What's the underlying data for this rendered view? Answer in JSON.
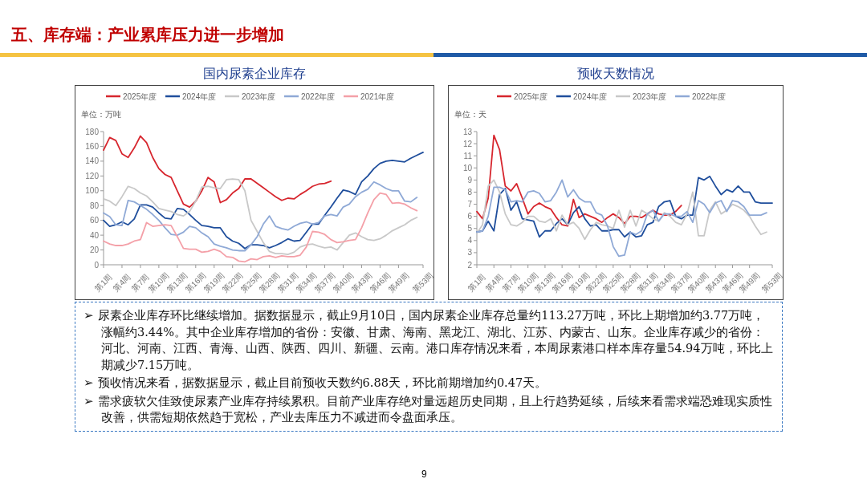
{
  "chart_data": [
    {
      "type": "line",
      "title": "国内尿素企业库存",
      "ylabel": "单位：万吨",
      "legend": "top",
      "categories": [
        "第1周",
        null,
        null,
        "第4周",
        null,
        null,
        "第7周",
        null,
        null,
        "第10周",
        null,
        null,
        "第13周",
        null,
        null,
        "第16周",
        null,
        null,
        "第19周",
        null,
        null,
        "第22周",
        null,
        null,
        "第25周",
        null,
        null,
        "第28周",
        null,
        null,
        "第31周",
        null,
        null,
        "第34周",
        null,
        null,
        "第37周",
        null,
        null,
        "第40周",
        null,
        null,
        "第43周",
        null,
        null,
        "第46周",
        null,
        null,
        "第49周",
        null,
        null,
        null,
        "第53周"
      ],
      "ylim": [
        0,
        180
      ],
      "yticks": [
        0,
        20,
        40,
        60,
        80,
        100,
        120,
        140,
        160,
        180
      ],
      "series": [
        {
          "name": "2025年度",
          "color": "#d7262e",
          "values": [
            155,
            172,
            168,
            150,
            145,
            158,
            174,
            165,
            145,
            130,
            122,
            118,
            100,
            82,
            78,
            86,
            100,
            118,
            112,
            84,
            88,
            97,
            103,
            116,
            116,
            110,
            104,
            98,
            92,
            87,
            90,
            89,
            95,
            100,
            106,
            109,
            110,
            113,
            null,
            null,
            null,
            null,
            null,
            null,
            null,
            null,
            null,
            null,
            null,
            null,
            null,
            null,
            null
          ]
        },
        {
          "name": "2024年度",
          "color": "#1f4e9c",
          "values": [
            60,
            52,
            54,
            58,
            54,
            62,
            81,
            81,
            78,
            70,
            63,
            62,
            76,
            75,
            68,
            60,
            53,
            52,
            50,
            50,
            38,
            32,
            29,
            22,
            27,
            27,
            26,
            23,
            26,
            30,
            35,
            32,
            33,
            44,
            55,
            55,
            67,
            78,
            90,
            101,
            99,
            95,
            112,
            120,
            130,
            137,
            140,
            141,
            140,
            139,
            144,
            148,
            152
          ]
        },
        {
          "name": "2023年度",
          "color": "#c8c8c8",
          "values": [
            89,
            86,
            80,
            92,
            106,
            103,
            97,
            93,
            85,
            76,
            74,
            72,
            68,
            66,
            72,
            86,
            105,
            106,
            104,
            103,
            115,
            116,
            115,
            100,
            60,
            45,
            30,
            18,
            15,
            15,
            14,
            17,
            24,
            27,
            28,
            25,
            23,
            24,
            20,
            30,
            40,
            43,
            38,
            34,
            33,
            35,
            40,
            46,
            50,
            54,
            60,
            64,
            null
          ]
        },
        {
          "name": "2022年度",
          "color": "#8fa9d6",
          "values": [
            70,
            65,
            54,
            53,
            87,
            85,
            80,
            75,
            68,
            60,
            50,
            41,
            40,
            44,
            52,
            50,
            43,
            38,
            28,
            25,
            23,
            20,
            19,
            19,
            27,
            38,
            55,
            66,
            52,
            49,
            47,
            52,
            56,
            58,
            55,
            57,
            66,
            68,
            66,
            78,
            82,
            92,
            98,
            102,
            112,
            108,
            103,
            100,
            100,
            86,
            85,
            91,
            null
          ]
        },
        {
          "name": "2021年度",
          "color": "#f4a0a8",
          "values": [
            32,
            28,
            26,
            26,
            28,
            32,
            34,
            57,
            52,
            53,
            54,
            53,
            38,
            22,
            21,
            21,
            17,
            18,
            21,
            18,
            11,
            10,
            5,
            4,
            8,
            7,
            11,
            12,
            10,
            12,
            11,
            11,
            13,
            24,
            45,
            44,
            41,
            34,
            30,
            31,
            33,
            34,
            50,
            70,
            88,
            97,
            95,
            83,
            84,
            82,
            77,
            73,
            null
          ]
        }
      ]
    },
    {
      "type": "line",
      "title": "预收天数情况",
      "ylabel": "单位：天",
      "legend": "top",
      "categories": [
        "第1周",
        null,
        null,
        "第4周",
        null,
        null,
        "第7周",
        null,
        null,
        "第10周",
        null,
        null,
        "第13周",
        null,
        null,
        "第16周",
        null,
        null,
        "第19周",
        null,
        null,
        "第22周",
        null,
        null,
        "第25周",
        null,
        null,
        "第28周",
        null,
        null,
        "第31周",
        null,
        null,
        "第34周",
        null,
        null,
        "第37周",
        null,
        null,
        "第40周",
        null,
        null,
        "第43周",
        null,
        null,
        "第46周",
        null,
        null,
        "第49周",
        null,
        null,
        null,
        "第53周"
      ],
      "ylim": [
        2,
        13
      ],
      "yticks": [
        2,
        3,
        4,
        5,
        6,
        7,
        8,
        9,
        10,
        11,
        12,
        13
      ],
      "series": [
        {
          "name": "2025年度",
          "color": "#d7262e",
          "values": [
            6.4,
            5.8,
            7.5,
            12.7,
            11.5,
            8.5,
            8.1,
            8.7,
            7.5,
            6.2,
            6.8,
            7.1,
            6.8,
            6.6,
            5.9,
            5.3,
            5.2,
            7.4,
            5.9,
            6.2,
            6.0,
            5.8,
            5.5,
            5.9,
            6.2,
            5.9,
            5.4,
            6.0,
            6.0,
            5.9,
            6.2,
            6.5,
            6.2,
            6.1,
            6.1,
            6.4,
            6.9,
            null,
            null,
            null,
            null,
            null,
            null,
            null,
            null,
            null,
            null,
            null,
            null,
            null,
            null,
            null,
            null
          ]
        },
        {
          "name": "2024年度",
          "color": "#1f4e9c",
          "values": [
            4.7,
            4.8,
            5.6,
            4.8,
            7.8,
            8.3,
            6.5,
            7.2,
            5.8,
            5.7,
            5.6,
            4.3,
            4.8,
            4.8,
            5.4,
            5.8,
            5.3,
            6.3,
            6.8,
            5.8,
            5.2,
            5.3,
            4.8,
            4.8,
            4.9,
            4.9,
            4.3,
            4.7,
            4.3,
            4.4,
            5.3,
            5.5,
            6.8,
            7.2,
            7.3,
            6.0,
            5.8,
            6.1,
            6.1,
            9.2,
            9.0,
            9.3,
            8.5,
            7.8,
            8.2,
            8.0,
            8.5,
            8.0,
            8.0,
            7.2,
            7.1,
            7.1,
            7.1
          ]
        },
        {
          "name": "2023年度",
          "color": "#c8c8c8",
          "values": [
            4.6,
            5.3,
            8.5,
            9.0,
            8.0,
            6.2,
            5.3,
            5.2,
            5.5,
            6.0,
            6.0,
            5.6,
            5.5,
            5.8,
            4.8,
            6.1,
            5.3,
            5.5,
            5.0,
            4.1,
            4.9,
            5.5,
            5.3,
            5.2,
            5.0,
            6.5,
            5.1,
            6.5,
            5.2,
            6.5,
            6.2,
            5.8,
            5.6,
            6.3,
            6.0,
            5.5,
            5.3,
            6.2,
            8.0,
            4.4,
            4.4,
            6.5,
            7.2,
            6.2,
            6.5,
            7.0,
            6.8,
            6.5,
            6.0,
            5.2,
            4.5,
            4.7,
            null
          ]
        },
        {
          "name": "2022年度",
          "color": "#8fa9d6",
          "values": [
            4.7,
            4.8,
            6.0,
            8.4,
            8.4,
            8.2,
            7.2,
            7.3,
            7.2,
            8.0,
            8.1,
            7.9,
            7.2,
            7.3,
            8.0,
            9.0,
            7.6,
            8.2,
            7.5,
            7.2,
            7.2,
            6.3,
            6.1,
            5.2,
            3.5,
            2.7,
            2.8,
            4.7,
            4.5,
            4.8,
            6.2,
            6.5,
            5.6,
            6.2,
            6.2,
            6.0,
            6.0,
            6.4,
            5.5,
            7.3,
            7.0,
            6.3,
            7.1,
            7.3,
            6.4,
            7.3,
            7.2,
            6.8,
            6.1,
            6.1,
            6.1,
            6.3,
            null
          ]
        }
      ]
    },
    {
      "type": "other",
      "title": "五、库存端：产业累库压力进一步增加",
      "annotations": [
        "➢ 尿素企业库存环比继续增加。据数据显示，截止9月10日，国内尿素企业库存总量约113.27万吨，环比上期增加约3.77万吨，涨幅约3.44%。其中企业库存增加的省份：安徽、甘肃、海南、黑龙江、湖北、江苏、内蒙古、山东。企业库存减少的省份：河北、河南、江西、青海、山西、陕西、四川、新疆、云南。港口库存情况来看，本周尿素港口样本库存量54.94万吨，环比上期减少7.15万吨。",
        "➢ 预收情况来看，据数据显示，截止目前预收天数约6.88天，环比前期增加约0.47天。",
        "➢ 需求疲软欠佳致使尿素产业库存持续累积。目前产业库存绝对量远超历史同期，且上行趋势延续，后续来看需求端恐难现实质性改善，供需短期依然趋于宽松，产业去库压力不减进而令盘面承压。",
        "9"
      ]
    }
  ]
}
